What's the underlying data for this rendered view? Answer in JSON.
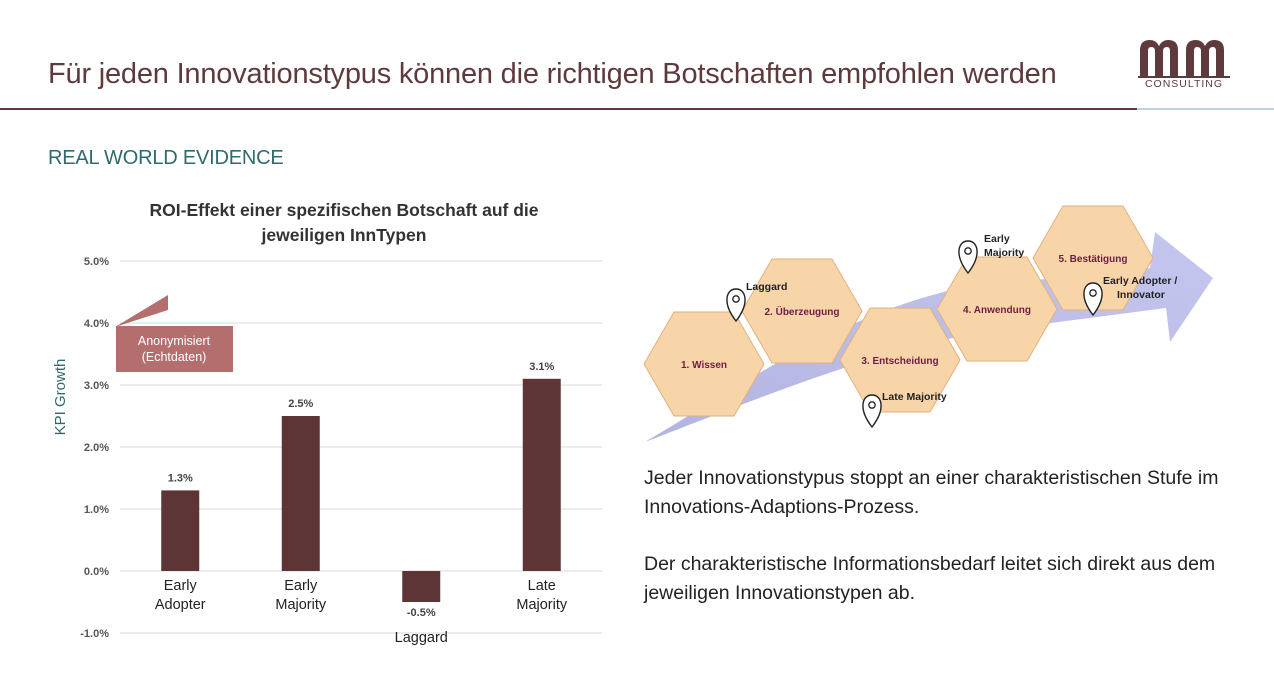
{
  "header": {
    "title": "Für jeden Innovationstypus können die richtigen Botschaften empfohlen werden",
    "logo_text": "CONSULTING"
  },
  "section": {
    "heading": "REAL WORLD EVIDENCE"
  },
  "chart_data": {
    "type": "bar",
    "title_lines": [
      "ROI-Effekt einer spezifischen Botschaft auf die",
      "jeweiligen InnTypen"
    ],
    "ylabel": "KPI Growth",
    "ylim": [
      -1.0,
      5.0
    ],
    "yticks": [
      -1.0,
      0.0,
      1.0,
      2.0,
      3.0,
      4.0,
      5.0
    ],
    "ytick_labels": [
      "-1.0%",
      "0.0%",
      "1.0%",
      "2.0%",
      "3.0%",
      "4.0%",
      "5.0%"
    ],
    "categories": [
      [
        "Early",
        "Adopter"
      ],
      [
        "Early",
        "Majority"
      ],
      [
        "Laggard"
      ],
      [
        "Late",
        "Majority"
      ]
    ],
    "values": [
      1.3,
      2.5,
      -0.5,
      3.1
    ],
    "value_labels": [
      "1.3%",
      "2.5%",
      "-0.5%",
      "3.1%"
    ],
    "bar_color": "#5e3536",
    "grid": true,
    "annotation": [
      "Anonymisiert",
      "(Echtdaten)"
    ],
    "annotation_color": "#b56e6e"
  },
  "process": {
    "steps": [
      {
        "label": "1. Wissen"
      },
      {
        "label": "2. Überzeugung"
      },
      {
        "label": "3. Entscheidung"
      },
      {
        "label": "4. Anwendung"
      },
      {
        "label": "5. Bestätigung"
      }
    ],
    "markers": [
      {
        "lines": [
          "Laggard"
        ]
      },
      {
        "lines": [
          "Late Majority"
        ]
      },
      {
        "lines": [
          "Early",
          "Majority"
        ]
      },
      {
        "lines": [
          "Early Adopter /",
          "Innovator"
        ]
      }
    ],
    "hex_fill": "#f8d5a9",
    "label_color": "#6e1d45"
  },
  "text": {
    "paragraph1": "Jeder Innovationstypus stoppt an einer charakteristischen Stufe im Innovations-Adaptions-Prozess.",
    "paragraph2": "Der charakteristische Informationsbedarf leitet sich direkt aus dem jeweiligen Innovationstypen ab."
  }
}
